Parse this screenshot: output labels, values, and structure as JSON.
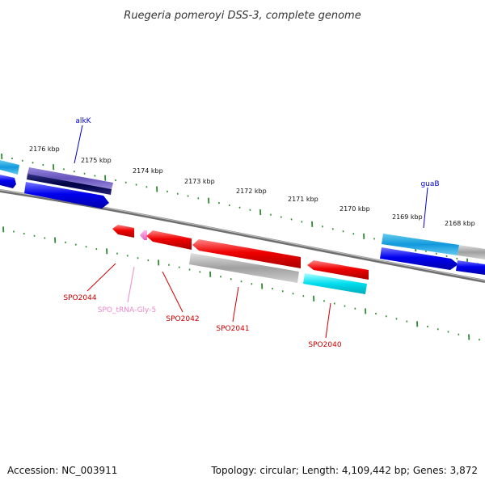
{
  "title": "Ruegeria pomeroyi DSS-3, complete genome",
  "footer": {
    "accession": "Accession: NC_003911",
    "summary": "Topology: circular; Length: 4,109,442 bp; Genes: 3,872"
  },
  "ticks": [
    "2176 kbp",
    "2175 kbp",
    "2174 kbp",
    "2173 kbp",
    "2172 kbp",
    "2171 kbp",
    "2170 kbp",
    "2169 kbp",
    "2168 kbp"
  ],
  "gene_labels": {
    "alkK": "alkK",
    "guaB": "guaB",
    "SPO2044": "SPO2044",
    "SPO_tRNA_Gly_5": "SPO_tRNA-Gly-5",
    "SPO2042": "SPO2042",
    "SPO2041": "SPO2041",
    "SPO2040": "SPO2040"
  },
  "colors": {
    "backbone": "#8a8a8a",
    "tick": "#2e8b2e",
    "cds_forward": "#0000ee",
    "cds_reverse": "#ee0000",
    "trna": "#ee88cc",
    "match_cyan": "#00ccdd",
    "match_gray": "#aaaaaa",
    "match_purple": "#7766cc",
    "label_blue": "#0000cc",
    "label_red": "#cc0000",
    "label_pink": "#ee88cc"
  }
}
